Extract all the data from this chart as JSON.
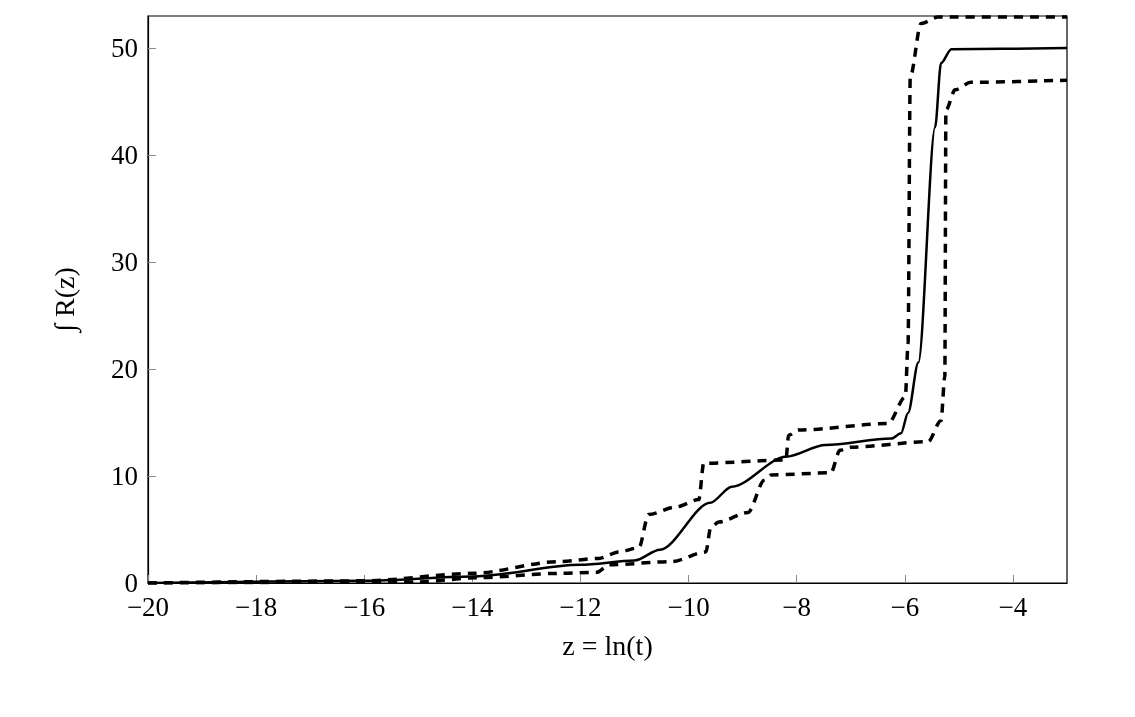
{
  "chart_data": {
    "type": "line",
    "xlabel": "z = ln(t)",
    "ylabel": "∫ R(z)",
    "xlim": [
      -20,
      -3
    ],
    "ylim": [
      0,
      53
    ],
    "xticks": [
      {
        "value": -20,
        "label": "−20"
      },
      {
        "value": -18,
        "label": "−18"
      },
      {
        "value": -16,
        "label": "−16"
      },
      {
        "value": -14,
        "label": "−14"
      },
      {
        "value": -12,
        "label": "−12"
      },
      {
        "value": -10,
        "label": "−10"
      },
      {
        "value": -8,
        "label": "−8"
      },
      {
        "value": -6,
        "label": "−6"
      },
      {
        "value": -4,
        "label": "−4"
      }
    ],
    "yticks": [
      0,
      10,
      20,
      30,
      40,
      50
    ],
    "grid": false,
    "marker": "none",
    "series": [
      {
        "color": "#000000",
        "line_style": "solid",
        "x": [
          -20,
          -16,
          -14,
          -12,
          -11,
          -10.53,
          -9.6,
          -9.2,
          -8.2,
          -7.47,
          -6.25,
          -6.07,
          -5.94,
          -5.75,
          -5.44,
          -5.33,
          -5.14,
          -3
        ],
        "values": [
          0,
          0.2,
          0.6,
          1.7,
          2.1,
          3.1,
          7.5,
          9.0,
          11.8,
          12.9,
          13.5,
          14.0,
          15.9,
          20.6,
          42.6,
          48.6,
          49.9,
          50.0
        ]
      },
      {
        "color": "#000000",
        "line_style": "dashed",
        "x": [
          -20,
          -16,
          -14,
          -12.4,
          -11.66,
          -11.29,
          -10.92,
          -10.74,
          -10.24,
          -9.81,
          -9.72,
          -8.2,
          -8.15,
          -7.97,
          -6.31,
          -5.99,
          -5.94,
          -5.9,
          -5.7,
          -5.38,
          -3
        ],
        "values": [
          0,
          0.2,
          0.9,
          2.0,
          2.3,
          2.9,
          3.3,
          6.4,
          7.1,
          7.8,
          11.2,
          11.5,
          13.8,
          14.3,
          14.9,
          17.4,
          22.4,
          47.3,
          52.3,
          52.9,
          52.9
        ]
      },
      {
        "color": "#000000",
        "line_style": "dashed",
        "x": [
          -20,
          -15,
          -13.9,
          -12.4,
          -11.7,
          -11.47,
          -10.32,
          -9.68,
          -9.59,
          -9.44,
          -8.9,
          -8.6,
          -8.47,
          -7.37,
          -7.2,
          -7.0,
          -5.57,
          -5.33,
          -5.26,
          -5.24,
          -5.07,
          -4.78,
          -3
        ],
        "values": [
          0,
          0.1,
          0.5,
          0.9,
          1.0,
          1.7,
          2.0,
          2.9,
          5.2,
          5.7,
          6.6,
          9.6,
          10.1,
          10.3,
          12.4,
          12.7,
          13.2,
          15.2,
          19.3,
          44.2,
          46.1,
          46.8,
          47.0
        ]
      }
    ]
  }
}
